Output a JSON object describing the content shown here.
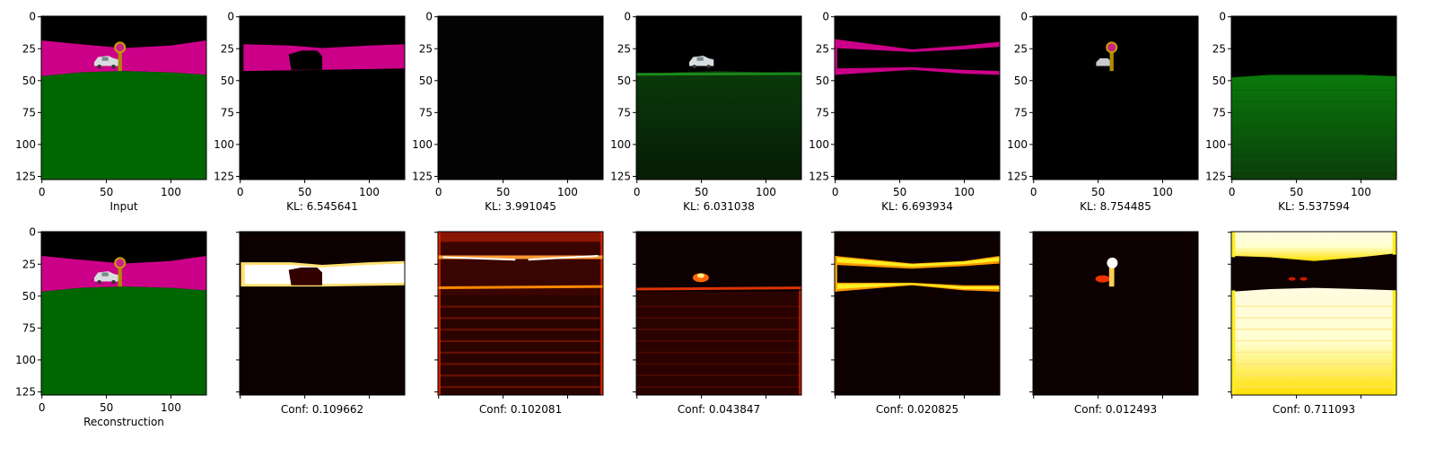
{
  "chart_data": {
    "type": "image-grid",
    "x_ticks": [
      "0",
      "50",
      "100"
    ],
    "y_ticks": [
      "0",
      "25",
      "50",
      "75",
      "100",
      "125"
    ],
    "top_row": [
      {
        "caption": "Input",
        "content": "scene"
      },
      {
        "caption": "KL: 6.545641",
        "content": "slot-sky"
      },
      {
        "caption": "KL: 3.991045",
        "content": "slot-empty"
      },
      {
        "caption": "KL: 6.031038",
        "content": "slot-ground"
      },
      {
        "caption": "KL: 6.693934",
        "content": "slot-sky-edges"
      },
      {
        "caption": "KL: 8.754485",
        "content": "slot-objects"
      },
      {
        "caption": "KL: 5.537594",
        "content": "slot-ground-faded"
      }
    ],
    "bottom_row": [
      {
        "caption": "Reconstruction",
        "content": "scene"
      },
      {
        "caption": "Conf: 0.109662",
        "content": "heat-sky"
      },
      {
        "caption": "Conf: 0.102081",
        "content": "heat-lines"
      },
      {
        "caption": "Conf: 0.043847",
        "content": "heat-ground"
      },
      {
        "caption": "Conf: 0.020825",
        "content": "heat-sky-edges"
      },
      {
        "caption": "Conf: 0.012493",
        "content": "heat-objects"
      },
      {
        "caption": "Conf: 0.711093",
        "content": "heat-ground-bright"
      }
    ],
    "colors": {
      "sky": "#cc0088",
      "ground": "#006600",
      "background": "#000000",
      "heat_low": "#0d0000",
      "heat_mid": "#cc2200",
      "heat_high": "#ffffff",
      "heat_yellow": "#ffee22"
    }
  }
}
